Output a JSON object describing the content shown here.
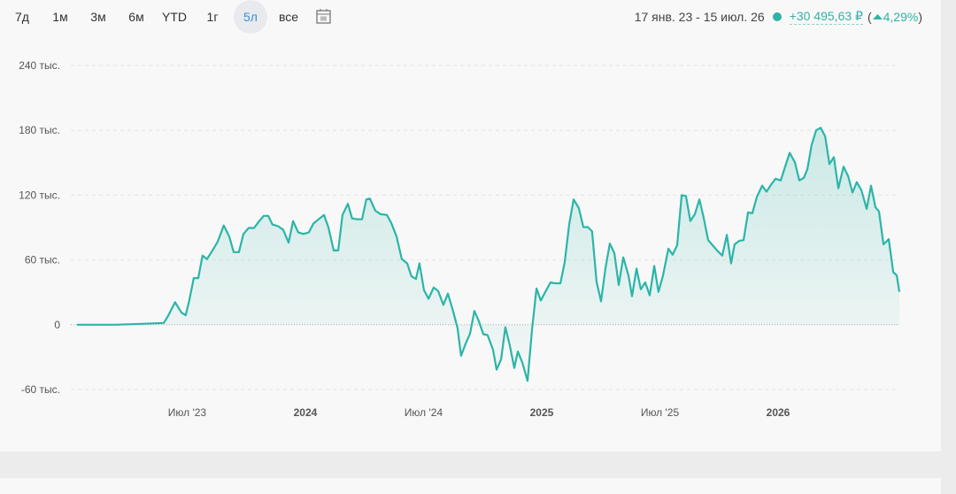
{
  "toolbar": {
    "ranges": [
      "7д",
      "1м",
      "3м",
      "6м",
      "YTD",
      "1г",
      "5л",
      "все"
    ],
    "selected": 6
  },
  "summary": {
    "date_range": "17 янв. 23 - 15 июл. 26",
    "change": "+30 495,63 ₽",
    "percent_open": "(",
    "percent": "4,29%",
    "percent_close": ")"
  },
  "chart_data": {
    "type": "area",
    "color": "#2bb5a8",
    "grid": true,
    "xlim": [
      2023.034,
      2026.513
    ],
    "xticks": [
      {
        "value": 2023.5,
        "label": "Июл '23"
      },
      2024,
      {
        "value": 2024.5,
        "label": "Июл '24"
      },
      2025,
      {
        "value": 2025.5,
        "label": "Июл '25"
      },
      2026
    ],
    "ylim": [
      -60000,
      240000
    ],
    "yticks": [
      {
        "value": -60000,
        "label": "-60 тыс."
      },
      0,
      {
        "value": 60000,
        "label": "60 тыс."
      },
      {
        "value": 120000,
        "label": "120 тыс."
      },
      {
        "value": 180000,
        "label": "180 тыс."
      },
      {
        "value": 240000,
        "label": "240 тыс."
      }
    ],
    "x": [
      2023.034,
      2023.195,
      2023.307,
      2023.401,
      2023.419,
      2023.449,
      2023.476,
      2023.494,
      2023.509,
      2023.528,
      2023.547,
      2023.565,
      2023.584,
      2023.607,
      2023.629,
      2023.655,
      2023.678,
      2023.697,
      2023.719,
      2023.738,
      2023.76,
      2023.783,
      2023.805,
      2023.824,
      2023.843,
      2023.861,
      2023.884,
      2023.906,
      2023.929,
      2023.948,
      2023.97,
      2023.992,
      2024.015,
      2024.034,
      2024.056,
      2024.079,
      2024.097,
      2024.12,
      2024.139,
      2024.157,
      2024.18,
      2024.198,
      2024.221,
      2024.24,
      2024.258,
      2024.273,
      2024.296,
      2024.318,
      2024.345,
      2024.363,
      2024.386,
      2024.408,
      2024.431,
      2024.449,
      2024.468,
      2024.483,
      2024.502,
      2024.521,
      2024.543,
      2024.562,
      2024.584,
      2024.603,
      2024.625,
      2024.644,
      2024.659,
      2024.678,
      2024.697,
      2024.715,
      2024.734,
      2024.753,
      2024.771,
      2024.794,
      2024.809,
      2024.828,
      2024.846,
      2024.865,
      2024.884,
      2024.899,
      2024.918,
      2024.94,
      2024.959,
      2024.978,
      2024.996,
      2025.019,
      2025.037,
      2025.056,
      2025.079,
      2025.097,
      2025.116,
      2025.135,
      2025.157,
      2025.176,
      2025.195,
      2025.213,
      2025.232,
      2025.251,
      2025.27,
      2025.288,
      2025.307,
      2025.326,
      2025.345,
      2025.367,
      2025.382,
      2025.401,
      2025.419,
      2025.438,
      2025.457,
      2025.476,
      2025.494,
      2025.513,
      2025.536,
      2025.554,
      2025.573,
      2025.592,
      2025.61,
      2025.629,
      2025.648,
      2025.667,
      2025.685,
      2025.704,
      2025.723,
      2025.745,
      2025.764,
      2025.783,
      2025.801,
      2025.816,
      2025.835,
      2025.854,
      2025.873,
      2025.891,
      2025.91,
      2025.933,
      2025.951,
      2025.97,
      2025.989,
      2026.011,
      2026.03,
      2026.049,
      2026.071,
      2026.09,
      2026.109,
      2026.124,
      2026.142,
      2026.161,
      2026.18,
      2026.199,
      2026.217,
      2026.236,
      2026.255,
      2026.277,
      2026.296,
      2026.315,
      2026.333,
      2026.352,
      2026.375,
      2026.393,
      2026.412,
      2026.427,
      2026.446,
      2026.468,
      2026.487,
      2026.502,
      2026.513
    ],
    "values": [
      0,
      0,
      800,
      1600,
      8000,
      20800,
      11200,
      8800,
      22400,
      43200,
      43200,
      64000,
      60800,
      68800,
      76800,
      92000,
      81600,
      67200,
      67200,
      84000,
      89600,
      89600,
      96000,
      100800,
      100800,
      92800,
      91200,
      88000,
      76000,
      96000,
      85600,
      84000,
      85600,
      93600,
      97600,
      101600,
      90400,
      68800,
      68800,
      101600,
      112000,
      98400,
      97600,
      97600,
      116000,
      116800,
      105600,
      102400,
      101600,
      94400,
      81600,
      60800,
      56800,
      44800,
      42400,
      56800,
      32000,
      24000,
      34400,
      31200,
      18400,
      28800,
      12800,
      -3200,
      -28800,
      -17600,
      -8000,
      12800,
      3200,
      -8800,
      -9600,
      -23200,
      -41600,
      -32000,
      -2400,
      -19200,
      -40000,
      -24800,
      -35200,
      -52000,
      -4800,
      33600,
      22400,
      32000,
      39200,
      38400,
      38400,
      57600,
      92800,
      116000,
      108000,
      90400,
      90400,
      86400,
      40000,
      21600,
      52800,
      75200,
      66400,
      36800,
      62400,
      45600,
      26400,
      52000,
      32800,
      39200,
      27200,
      54400,
      30400,
      45600,
      70400,
      64800,
      73600,
      120000,
      119200,
      96000,
      102400,
      116000,
      99200,
      78400,
      73600,
      68000,
      64000,
      83200,
      56800,
      74400,
      77600,
      78400,
      104000,
      103200,
      118400,
      128800,
      123200,
      129600,
      135200,
      133600,
      146400,
      159200,
      150400,
      133600,
      136000,
      144000,
      166400,
      180000,
      182400,
      174400,
      148800,
      155200,
      126400,
      146400,
      137600,
      122400,
      132000,
      124800,
      107200,
      128800,
      108800,
      104800,
      74400,
      79200,
      48800,
      45600,
      30495.63
    ]
  }
}
